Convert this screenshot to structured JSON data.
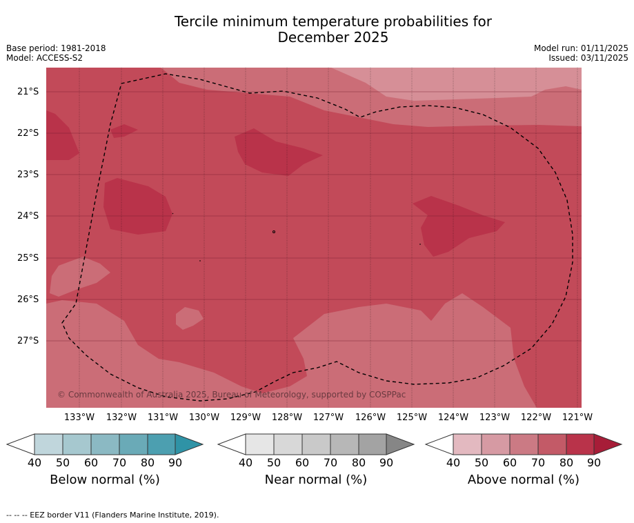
{
  "title_line1": "Tercile minimum temperature probabilities for",
  "title_line2": "December 2025",
  "base_period": "Base period: 1981-2018",
  "model": "Model: ACCESS-S2",
  "model_run": "Model run: 01/11/2025",
  "issued": "Issued: 03/11/2025",
  "copyright": "© Commonwealth of Australia 2025, Bureau of Meteorology, supported by COSPPac",
  "lat_labels": [
    "21°S",
    "22°S",
    "23°S",
    "24°S",
    "25°S",
    "26°S",
    "27°S"
  ],
  "lon_labels": [
    "133°W",
    "132°W",
    "131°W",
    "130°W",
    "129°W",
    "128°W",
    "127°W",
    "126°W",
    "125°W",
    "124°W",
    "123°W",
    "122°W",
    "121°W"
  ],
  "colorbars": [
    {
      "label": "Below normal (%)",
      "ticks": [
        "40",
        "50",
        "60",
        "70",
        "80",
        "90"
      ],
      "colors": [
        "#c0d6dc",
        "#a6c8cf",
        "#8bb9c3",
        "#6aaab7",
        "#4c9fb0",
        "#2f93a6"
      ]
    },
    {
      "label": "Near normal (%)",
      "ticks": [
        "40",
        "50",
        "60",
        "70",
        "80",
        "90"
      ],
      "colors": [
        "#e6e6e6",
        "#d8d8d8",
        "#c9c9c9",
        "#b7b7b7",
        "#a3a3a3",
        "#868686"
      ]
    },
    {
      "label": "Above normal (%)",
      "ticks": [
        "40",
        "50",
        "60",
        "70",
        "80",
        "90"
      ],
      "colors": [
        "#e3b9c0",
        "#d69aa3",
        "#cb7a84",
        "#c35a67",
        "#b9334a",
        "#a71d38"
      ]
    }
  ],
  "footer": "--  --  -- EEZ border V11 (Flanders Marine Institute, 2019).",
  "map_colors": {
    "above_60": "#cb6d77",
    "above_70": "#c24a59",
    "above_80": "#b9334a",
    "above_50": "#d68f97"
  }
}
